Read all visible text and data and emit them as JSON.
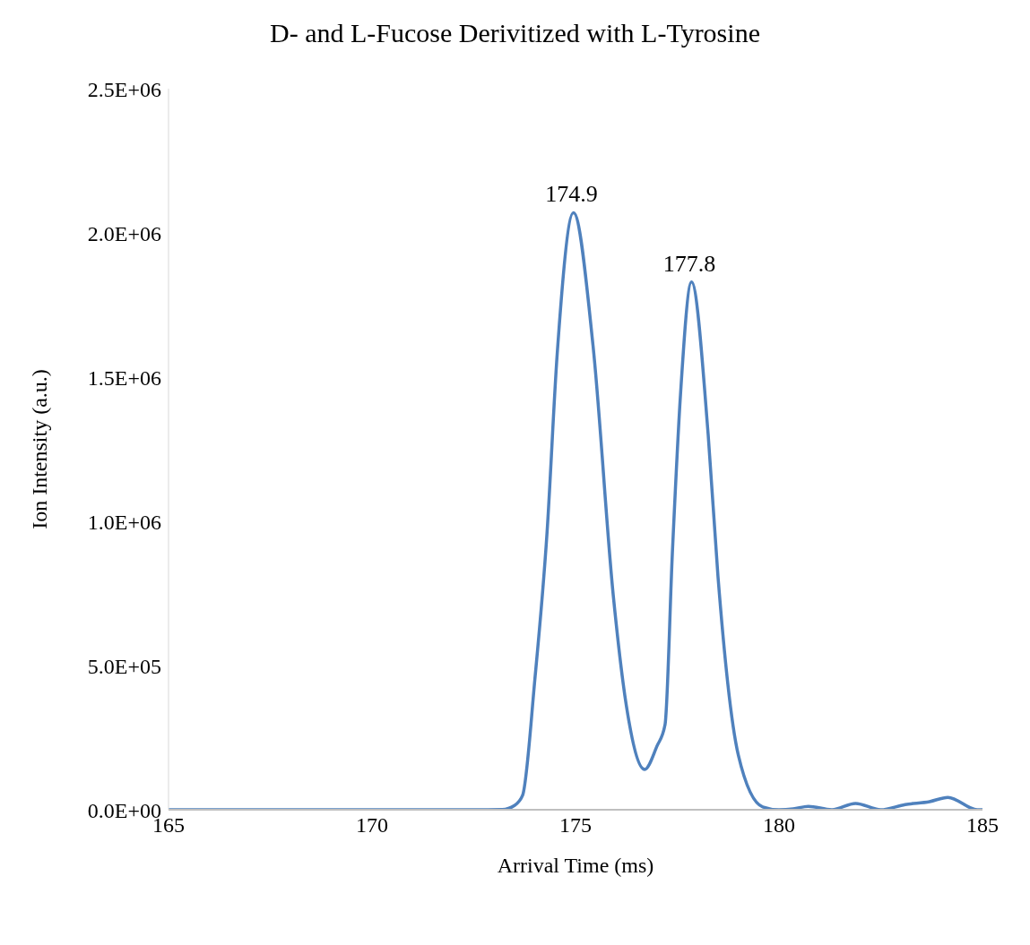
{
  "chart_data": {
    "type": "line",
    "title": "D- and L-Fucose Derivitized with L-Tyrosine",
    "xlabel": "Arrival Time (ms)",
    "ylabel": "Ion Intensity (a.u.)",
    "x": [
      165,
      167,
      169,
      171,
      172.5,
      173.2,
      173.5,
      173.7,
      174.0,
      174.3,
      174.55,
      174.95,
      175.43,
      175.93,
      176.25,
      176.7,
      177.0,
      177.2,
      177.38,
      177.58,
      177.85,
      178.26,
      178.5,
      179.0,
      179.6,
      180.0,
      180.35,
      180.72,
      181.3,
      181.88,
      182.5,
      183.1,
      183.7,
      184.15,
      184.87,
      185
    ],
    "series": [
      {
        "color": "#4f81bd",
        "values": [
          0,
          0,
          0,
          0,
          0,
          1000,
          15000,
          50000,
          450000,
          960000,
          1580000,
          2070000,
          1610000,
          740000,
          360000,
          140000,
          220000,
          295000,
          890000,
          1440000,
          1830000,
          1300000,
          810000,
          190000,
          10000,
          0,
          3000,
          12000,
          0,
          22000,
          0,
          18000,
          28000,
          43000,
          0,
          0
        ]
      }
    ],
    "annotations": [
      {
        "text": "174.9",
        "x": 174.9,
        "y": 2070000
      },
      {
        "text": "177.8",
        "x": 177.8,
        "y": 1830000
      }
    ],
    "xlim": [
      165,
      185
    ],
    "xticks": [
      165,
      170,
      175,
      180,
      185
    ],
    "ylim": [
      0,
      2500000
    ],
    "yticks": [
      {
        "value": 0,
        "label": "0.0E+00"
      },
      {
        "value": 500000,
        "label": "5.0E+05"
      },
      {
        "value": 1000000,
        "label": "1.0E+06"
      },
      {
        "value": 1500000,
        "label": "1.5E+06"
      },
      {
        "value": 2000000,
        "label": "2.0E+06"
      },
      {
        "value": 2500000,
        "label": "2.5E+06"
      }
    ],
    "grid": false,
    "legend": false,
    "marker": "none",
    "line_style": "solid"
  }
}
